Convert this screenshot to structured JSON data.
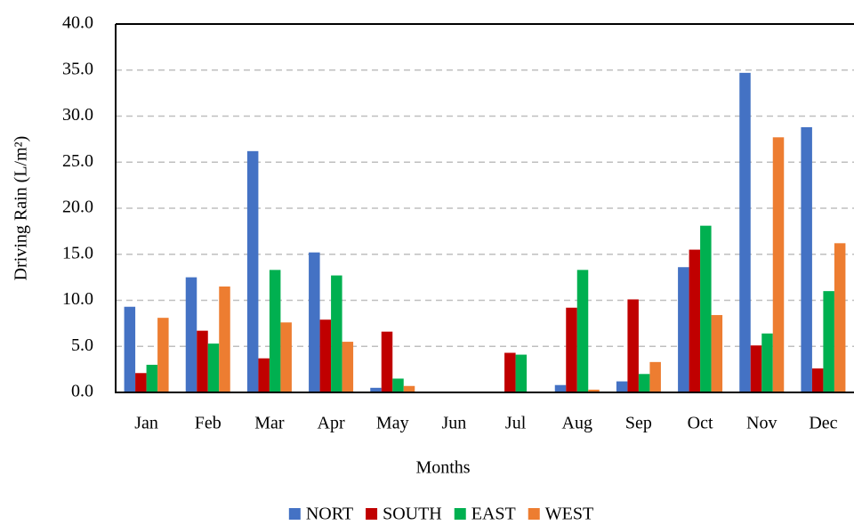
{
  "chart_data": {
    "type": "bar",
    "x_label": "Months",
    "y_label": "Driving Rain (L/m²)",
    "categories": [
      "Jan",
      "Feb",
      "Mar",
      "Apr",
      "May",
      "Jun",
      "Jul",
      "Aug",
      "Sep",
      "Oct",
      "Nov",
      "Dec"
    ],
    "series": [
      {
        "name": "NORT",
        "color": "#4472c4",
        "values": [
          9.3,
          12.5,
          26.2,
          15.2,
          0.5,
          0,
          0,
          0.8,
          1.2,
          13.6,
          34.7,
          28.8
        ]
      },
      {
        "name": "SOUTH",
        "color": "#c00000",
        "values": [
          2.1,
          6.7,
          3.7,
          7.9,
          6.6,
          0,
          4.3,
          9.2,
          10.1,
          15.5,
          5.1,
          2.6
        ]
      },
      {
        "name": "EAST",
        "color": "#00b050",
        "values": [
          3.0,
          5.3,
          13.3,
          12.7,
          1.5,
          0,
          4.1,
          13.3,
          2.0,
          18.1,
          6.4,
          11.0
        ]
      },
      {
        "name": "WEST",
        "color": "#ed7d31",
        "values": [
          8.1,
          11.5,
          7.6,
          5.5,
          0.7,
          0,
          0,
          0.3,
          3.3,
          8.4,
          27.7,
          16.2
        ]
      }
    ],
    "ylim": [
      0,
      40
    ],
    "yticks": [
      {
        "value": 0,
        "label": "0.0"
      },
      {
        "value": 5,
        "label": "5.0"
      },
      {
        "value": 10,
        "label": "10.0"
      },
      {
        "value": 15,
        "label": "15.0"
      },
      {
        "value": 20,
        "label": "20.0"
      },
      {
        "value": 25,
        "label": "25.0"
      },
      {
        "value": 30,
        "label": "30.0"
      },
      {
        "value": 35,
        "label": "35.0"
      },
      {
        "value": 40,
        "label": "40.0"
      }
    ],
    "grid": true,
    "legend": "bottom"
  }
}
